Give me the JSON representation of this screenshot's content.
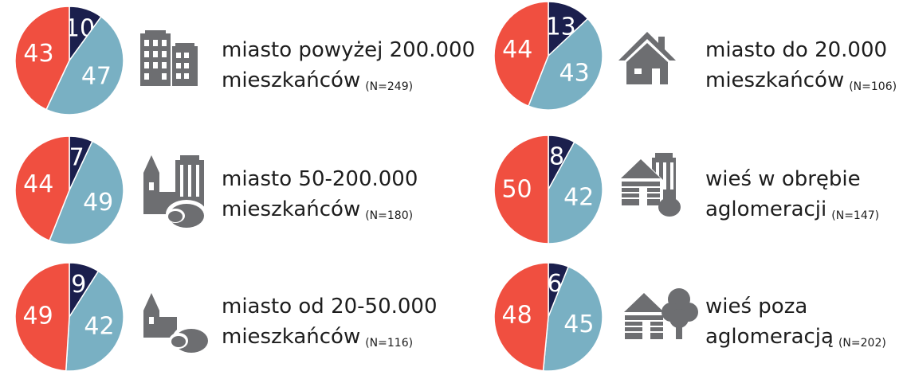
{
  "chart_data": [
    {
      "type": "pie",
      "title_lines": [
        "miasto powyżej 200.000",
        "mieszkańców"
      ],
      "note": "(N=249)",
      "categories": [
        null,
        null,
        null
      ],
      "values": [
        10,
        47,
        43
      ],
      "colors": [
        "#1b1f4d",
        "#79b0c3",
        "#f04f40"
      ]
    },
    {
      "type": "pie",
      "title_lines": [
        "miasto do 20.000",
        "mieszkańców"
      ],
      "note": "(N=106)",
      "categories": [
        null,
        null,
        null
      ],
      "values": [
        13,
        43,
        44
      ],
      "colors": [
        "#1b1f4d",
        "#79b0c3",
        "#f04f40"
      ]
    },
    {
      "type": "pie",
      "title_lines": [
        "miasto 50-200.000",
        "mieszkańców"
      ],
      "note": "(N=180)",
      "categories": [
        null,
        null,
        null
      ],
      "values": [
        7,
        49,
        44
      ],
      "colors": [
        "#1b1f4d",
        "#79b0c3",
        "#f04f40"
      ]
    },
    {
      "type": "pie",
      "title_lines": [
        "wieś w obrębie",
        "aglomeracji"
      ],
      "note": "(N=147)",
      "categories": [
        null,
        null,
        null
      ],
      "values": [
        8,
        42,
        50
      ],
      "colors": [
        "#1b1f4d",
        "#79b0c3",
        "#f04f40"
      ]
    },
    {
      "type": "pie",
      "title_lines": [
        "miasto od 20-50.000",
        "mieszkańców"
      ],
      "note": "(N=116)",
      "categories": [
        null,
        null,
        null
      ],
      "values": [
        9,
        42,
        49
      ],
      "colors": [
        "#1b1f4d",
        "#79b0c3",
        "#f04f40"
      ]
    },
    {
      "type": "pie",
      "title_lines": [
        "wieś poza",
        "aglomeracją"
      ],
      "note": "(N=202)",
      "categories": [
        null,
        null,
        null
      ],
      "values": [
        6,
        45,
        48
      ],
      "colors": [
        "#1b1f4d",
        "#79b0c3",
        "#f04f40"
      ]
    }
  ]
}
